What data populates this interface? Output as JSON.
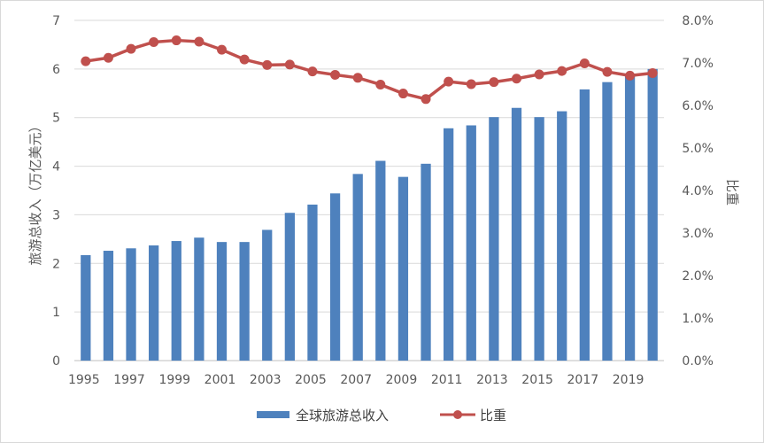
{
  "chart_data": {
    "type": "bar+line",
    "categories": [
      "1995",
      "1996",
      "1997",
      "1998",
      "1999",
      "2000",
      "2001",
      "2002",
      "2003",
      "2004",
      "2005",
      "2006",
      "2007",
      "2008",
      "2009",
      "2010",
      "2011",
      "2012",
      "2013",
      "2014",
      "2015",
      "2016",
      "2017",
      "2018",
      "2019",
      "2020"
    ],
    "x_tick_labels": [
      "1995",
      "1997",
      "1999",
      "2001",
      "2003",
      "2005",
      "2007",
      "2009",
      "2011",
      "2013",
      "2015",
      "2017",
      "2019"
    ],
    "series": [
      {
        "name": "全球旅游总收入",
        "type": "bar",
        "axis": "left",
        "color": "#4e81bd",
        "values": [
          2.17,
          2.26,
          2.31,
          2.37,
          2.46,
          2.53,
          2.44,
          2.44,
          2.69,
          3.04,
          3.21,
          3.44,
          3.84,
          4.11,
          3.78,
          4.05,
          4.78,
          4.84,
          5.01,
          5.2,
          5.01,
          5.13,
          5.58,
          5.73,
          5.86,
          6.0
        ]
      },
      {
        "name": "比重",
        "type": "line",
        "axis": "right",
        "color": "#c0504d",
        "values": [
          7.04,
          7.12,
          7.33,
          7.49,
          7.53,
          7.5,
          7.31,
          7.08,
          6.95,
          6.96,
          6.8,
          6.72,
          6.65,
          6.49,
          6.28,
          6.15,
          6.56,
          6.5,
          6.55,
          6.63,
          6.73,
          6.81,
          6.99,
          6.79,
          6.7,
          6.76
        ]
      }
    ],
    "ylabel": "旅游总收入（万亿美元）",
    "y2label": "比重",
    "ylim": [
      0,
      7
    ],
    "y2lim": [
      0,
      8
    ],
    "y_ticks": [
      "0",
      "1",
      "2",
      "3",
      "4",
      "5",
      "6",
      "7"
    ],
    "y2_ticks": [
      "0.0%",
      "1.0%",
      "2.0%",
      "3.0%",
      "4.0%",
      "5.0%",
      "6.0%",
      "7.0%",
      "8.0%"
    ],
    "grid": true,
    "legend_position": "bottom"
  }
}
